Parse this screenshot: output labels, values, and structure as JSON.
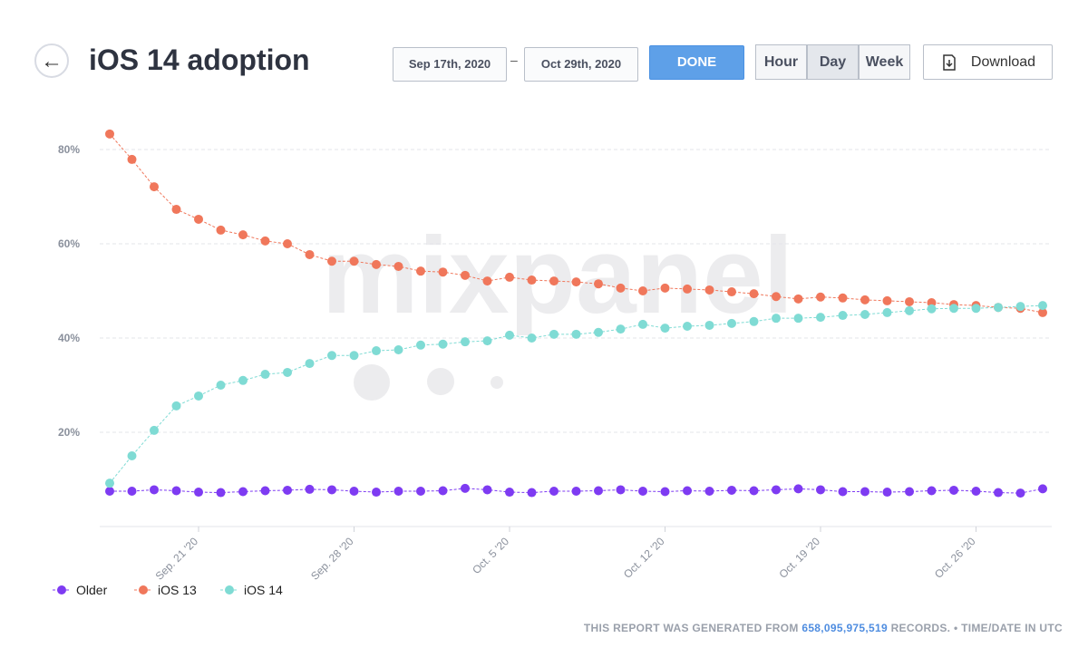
{
  "header": {
    "back": "←",
    "title": "iOS 14 adoption",
    "date_from": "Sep 17th, 2020",
    "date_sep": "–",
    "date_to": "Oct 29th, 2020",
    "done": "DONE",
    "units": [
      "Hour",
      "Day",
      "Week"
    ],
    "selected_unit": "Day",
    "download": "Download"
  },
  "watermark": "mixpanel",
  "chart_data": {
    "type": "line",
    "x": [
      "2020-09-17",
      "2020-09-18",
      "2020-09-19",
      "2020-09-20",
      "2020-09-21",
      "2020-09-22",
      "2020-09-23",
      "2020-09-24",
      "2020-09-25",
      "2020-09-26",
      "2020-09-27",
      "2020-09-28",
      "2020-09-29",
      "2020-09-30",
      "2020-10-01",
      "2020-10-02",
      "2020-10-03",
      "2020-10-04",
      "2020-10-05",
      "2020-10-06",
      "2020-10-07",
      "2020-10-08",
      "2020-10-09",
      "2020-10-10",
      "2020-10-11",
      "2020-10-12",
      "2020-10-13",
      "2020-10-14",
      "2020-10-15",
      "2020-10-16",
      "2020-10-17",
      "2020-10-18",
      "2020-10-19",
      "2020-10-20",
      "2020-10-21",
      "2020-10-22",
      "2020-10-23",
      "2020-10-24",
      "2020-10-25",
      "2020-10-26",
      "2020-10-27",
      "2020-10-28",
      "2020-10-29"
    ],
    "xlim": [
      "2020-09-17",
      "2020-10-29"
    ],
    "xticks": [
      {
        "value": "2020-09-21",
        "label": "Sep. 21 '20"
      },
      {
        "value": "2020-09-28",
        "label": "Sep. 28 '20"
      },
      {
        "value": "2020-10-05",
        "label": "Oct. 5 '20"
      },
      {
        "value": "2020-10-12",
        "label": "Oct. 12 '20"
      },
      {
        "value": "2020-10-19",
        "label": "Oct. 19 '20"
      },
      {
        "value": "2020-10-26",
        "label": "Oct. 26 '20"
      }
    ],
    "ylim": [
      0,
      88
    ],
    "yticks": [
      {
        "value": 20,
        "label": "20%"
      },
      {
        "value": 40,
        "label": "40%"
      },
      {
        "value": 60,
        "label": "60%"
      },
      {
        "value": 80,
        "label": "80%"
      }
    ],
    "grid": true,
    "series": [
      {
        "name": "Older",
        "color": "#7e3bf2",
        "values": [
          7.5,
          7.5,
          7.8,
          7.6,
          7.3,
          7.2,
          7.4,
          7.6,
          7.7,
          7.9,
          7.8,
          7.5,
          7.3,
          7.5,
          7.5,
          7.6,
          8.1,
          7.8,
          7.3,
          7.2,
          7.5,
          7.5,
          7.6,
          7.8,
          7.5,
          7.4,
          7.6,
          7.5,
          7.7,
          7.6,
          7.8,
          8.0,
          7.8,
          7.4,
          7.4,
          7.3,
          7.4,
          7.6,
          7.7,
          7.5,
          7.2,
          7.1,
          8.0
        ]
      },
      {
        "name": "iOS 13",
        "color": "#f0775b",
        "values": [
          83.3,
          77.9,
          72.1,
          67.3,
          65.2,
          62.9,
          61.9,
          60.6,
          60.0,
          57.7,
          56.3,
          56.3,
          55.6,
          55.2,
          54.2,
          54.0,
          53.3,
          52.1,
          52.9,
          52.3,
          52.1,
          51.9,
          51.5,
          50.6,
          50.0,
          50.6,
          50.4,
          50.2,
          49.8,
          49.4,
          48.8,
          48.3,
          48.7,
          48.5,
          48.1,
          47.9,
          47.7,
          47.5,
          47.1,
          46.9,
          46.5,
          46.3,
          45.4
        ]
      },
      {
        "name": "iOS 14",
        "color": "#7fdbd4",
        "values": [
          9.2,
          15.0,
          20.4,
          25.6,
          27.7,
          30.0,
          31.0,
          32.3,
          32.7,
          34.6,
          36.3,
          36.3,
          37.3,
          37.5,
          38.5,
          38.7,
          39.2,
          39.4,
          40.6,
          40.0,
          40.8,
          40.8,
          41.2,
          41.9,
          42.9,
          42.1,
          42.5,
          42.7,
          43.1,
          43.5,
          44.2,
          44.2,
          44.4,
          44.8,
          45.0,
          45.4,
          45.8,
          46.2,
          46.3,
          46.3,
          46.5,
          46.7,
          46.9
        ]
      }
    ]
  },
  "footer": {
    "prefix": "THIS REPORT WAS GENERATED FROM",
    "records": "658,095,975,519",
    "suffix": "RECORDS. • TIME/DATE IN UTC"
  }
}
